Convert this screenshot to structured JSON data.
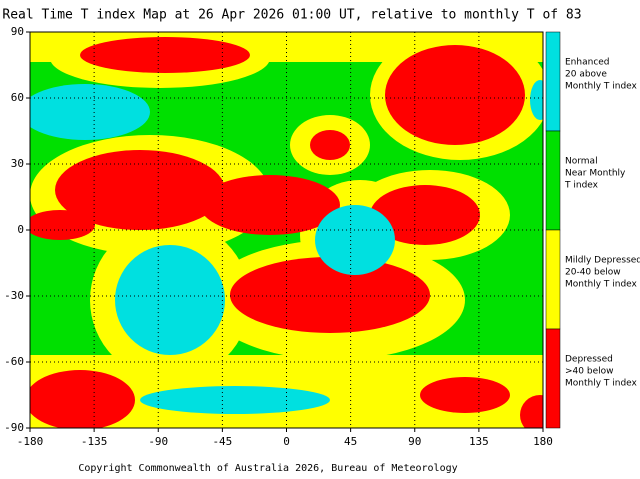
{
  "map": {
    "title": "Real Time T index Map at 26 Apr 2026 01:00 UT, relative to monthly T of 83",
    "xticks": [
      -180,
      -135,
      -90,
      -45,
      0,
      45,
      90,
      135,
      180
    ],
    "yticks": [
      90,
      60,
      30,
      0,
      -30,
      -60,
      -90
    ],
    "xlim": [
      -180,
      180
    ],
    "ylim": [
      -90,
      90
    ],
    "grid": true,
    "legend": [
      {
        "lines": [
          "Enhanced",
          "20 above",
          "Monthly T index"
        ],
        "color": "#00e0e0"
      },
      {
        "lines": [
          "Normal",
          "Near Monthly",
          "T index"
        ],
        "color": "#00e000"
      },
      {
        "lines": [
          "Mildly Depressed",
          "20-40 below",
          "Monthly T index"
        ],
        "color": "#ffff00"
      },
      {
        "lines": [
          "Depressed",
          ">40 below",
          "Monthly T index"
        ],
        "color": "#ff0000"
      }
    ],
    "footer": "Copyright Commonwealth of Australia 2026, Bureau of Meteorology"
  }
}
